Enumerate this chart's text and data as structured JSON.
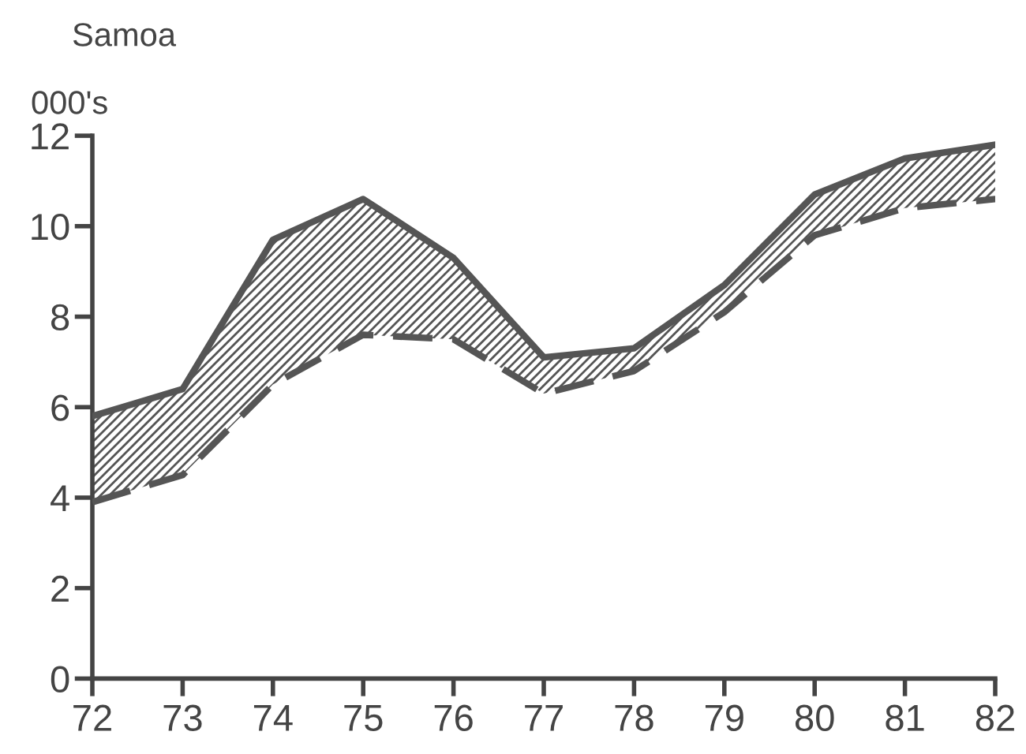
{
  "chart_data": {
    "type": "line",
    "title": "Samoa",
    "ylabel": "000's",
    "x": [
      72,
      73,
      74,
      75,
      76,
      77,
      78,
      79,
      80,
      81,
      82
    ],
    "series": [
      {
        "color": "#555555",
        "line_style": "solid",
        "values": [
          5.8,
          6.4,
          9.7,
          10.6,
          9.3,
          7.1,
          7.3,
          8.7,
          10.7,
          11.5,
          11.8
        ],
        "lower": [
          3.9,
          4.5,
          6.5,
          7.6,
          7.5,
          6.3,
          6.8,
          8.1,
          9.8,
          10.4,
          10.6
        ],
        "upper": [
          5.8,
          6.4,
          9.7,
          10.6,
          9.3,
          7.1,
          7.3,
          8.7,
          10.7,
          11.5,
          11.8
        ]
      },
      {
        "color": "#555555",
        "line_style": "dashed",
        "values": [
          3.9,
          4.5,
          6.5,
          7.6,
          7.5,
          6.3,
          6.8,
          8.1,
          9.8,
          10.4,
          10.6
        ]
      }
    ],
    "xlim": [
      72,
      82
    ],
    "ylim": [
      0,
      12
    ],
    "xticks": [
      72,
      73,
      74,
      75,
      76,
      77,
      78,
      79,
      80,
      81,
      82
    ],
    "yticks": [
      0,
      2,
      4,
      6,
      8,
      10,
      12
    ],
    "grid": false,
    "legend": false,
    "marker": "none"
  }
}
